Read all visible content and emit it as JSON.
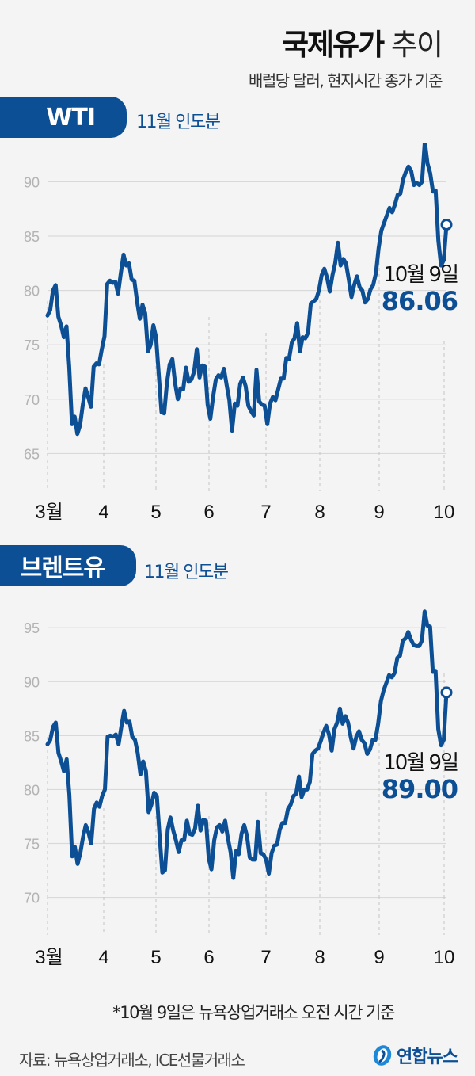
{
  "header": {
    "title_bold": "국제유가",
    "title_light": "추이",
    "subtitle": "배럴당 달러, 현지시간 종가 기준"
  },
  "wti": {
    "badge": "WTI",
    "contract": "11월 인도분",
    "annotation_date": "10월 9일",
    "annotation_value": "86.06"
  },
  "brent": {
    "badge": "브렌트유",
    "contract": "11월 인도분",
    "annotation_date": "10월 9일",
    "annotation_value": "89.00"
  },
  "footer": {
    "note": "*10월 9일은 뉴욕상업거래소 오전 시간 기준",
    "source": "자료: 뉴욕상업거래소, ICE선물거래소",
    "logo_text": "연합뉴스"
  },
  "colors": {
    "line": "#0d4f94",
    "grid": "#d9d9d9",
    "tick": "#b3b3b3",
    "background": "#f4f4f4"
  },
  "chart_data": [
    {
      "type": "line",
      "title": "WTI 11월 인도분",
      "xlabel": "",
      "ylabel": "배럴당 달러",
      "x_ticks": [
        "3월",
        "4",
        "5",
        "6",
        "7",
        "8",
        "9",
        "10"
      ],
      "y_ticks": [
        65,
        70,
        75,
        80,
        85,
        90
      ],
      "ylim": [
        63.5,
        92
      ],
      "grid": true,
      "annotation": {
        "label": "10월 9일",
        "value": 86.06
      },
      "values": [
        77.7,
        78.2,
        80.0,
        80.5,
        77.6,
        76.8,
        75.7,
        76.7,
        73.0,
        67.7,
        68.4,
        66.8,
        67.6,
        69.5,
        71.0,
        70.2,
        69.3,
        73.0,
        73.3,
        73.2,
        74.6,
        75.8,
        80.6,
        80.9,
        80.7,
        80.8,
        79.7,
        81.6,
        83.3,
        82.3,
        82.5,
        81.0,
        80.9,
        79.0,
        77.4,
        78.7,
        77.9,
        74.4,
        75.0,
        76.8,
        75.7,
        72.2,
        68.8,
        68.7,
        71.5,
        73.2,
        73.7,
        71.5,
        70.0,
        71.0,
        70.9,
        72.9,
        71.6,
        71.8,
        72.5,
        74.6,
        72.0,
        73.1,
        73.0,
        69.5,
        68.2,
        70.2,
        71.8,
        72.2,
        72.0,
        72.8,
        71.3,
        69.9,
        67.1,
        69.6,
        69.4,
        71.4,
        72.0,
        71.2,
        69.4,
        68.9,
        68.5,
        72.7,
        69.8,
        69.5,
        69.4,
        67.7,
        69.6,
        70.2,
        69.9,
        70.9,
        71.9,
        71.9,
        73.8,
        73.7,
        75.2,
        75.6,
        77.0,
        74.4,
        75.7,
        75.6,
        76.1,
        78.8,
        79.0,
        79.2,
        80.0,
        81.4,
        82.0,
        81.2,
        79.9,
        81.4,
        82.5,
        84.4,
        82.3,
        82.9,
        82.5,
        81.0,
        79.4,
        80.5,
        81.3,
        80.3,
        80.0,
        78.9,
        79.2,
        80.1,
        80.5,
        81.6,
        83.9,
        85.5,
        86.2,
        86.9,
        87.6,
        87.2,
        87.9,
        88.8,
        88.9,
        90.2,
        90.9,
        91.4,
        91.0,
        89.7,
        89.9,
        89.7,
        90.0,
        93.7,
        91.7,
        90.8,
        89.1,
        89.2,
        84.6,
        82.3,
        82.8,
        86.06
      ]
    },
    {
      "type": "line",
      "title": "브렌트유 11월 인도분",
      "xlabel": "",
      "ylabel": "배럴당 달러",
      "x_ticks": [
        "3월",
        "4",
        "5",
        "6",
        "7",
        "8",
        "9",
        "10"
      ],
      "y_ticks": [
        70,
        75,
        80,
        85,
        90,
        95
      ],
      "ylim": [
        68.5,
        97
      ],
      "grid": true,
      "annotation": {
        "label": "10월 9일",
        "value": 89.0
      },
      "values": [
        84.2,
        84.6,
        85.8,
        86.2,
        83.4,
        82.6,
        81.7,
        82.8,
        79.5,
        73.8,
        74.7,
        73.1,
        74.1,
        75.6,
        76.7,
        76.0,
        75.0,
        78.2,
        78.8,
        78.4,
        79.4,
        80.0,
        84.9,
        85.0,
        84.9,
        85.1,
        84.2,
        85.8,
        87.3,
        86.2,
        86.3,
        84.9,
        84.6,
        83.4,
        81.4,
        82.6,
        81.7,
        77.9,
        78.6,
        79.7,
        79.4,
        75.8,
        72.3,
        72.5,
        76.3,
        77.4,
        76.2,
        75.3,
        74.2,
        75.3,
        75.3,
        77.1,
        75.9,
        75.8,
        76.4,
        78.5,
        76.2,
        77.2,
        77.1,
        73.6,
        72.6,
        75.3,
        76.5,
        76.7,
        76.1,
        77.1,
        75.5,
        74.2,
        71.8,
        74.3,
        74.0,
        75.9,
        76.7,
        75.7,
        73.7,
        73.5,
        73.5,
        77.0,
        74.1,
        74.0,
        73.5,
        72.2,
        74.1,
        74.8,
        74.9,
        76.3,
        76.9,
        76.9,
        78.2,
        78.6,
        79.4,
        79.6,
        81.2,
        79.3,
        80.0,
        80.0,
        80.7,
        83.3,
        83.6,
        83.8,
        84.5,
        85.3,
        85.9,
        85.1,
        83.6,
        85.6,
        86.2,
        87.5,
        86.1,
        86.8,
        86.2,
        84.8,
        83.8,
        84.9,
        85.4,
        84.6,
        84.3,
        83.3,
        83.7,
        84.6,
        84.6,
        86.1,
        88.2,
        89.2,
        89.9,
        90.6,
        90.4,
        90.8,
        92.2,
        92.4,
        93.8,
        94.0,
        94.6,
        93.9,
        93.4,
        93.3,
        93.3,
        93.8,
        96.5,
        95.2,
        95.1,
        90.9,
        91.0,
        85.6,
        84.1,
        84.6,
        89.0
      ]
    }
  ]
}
